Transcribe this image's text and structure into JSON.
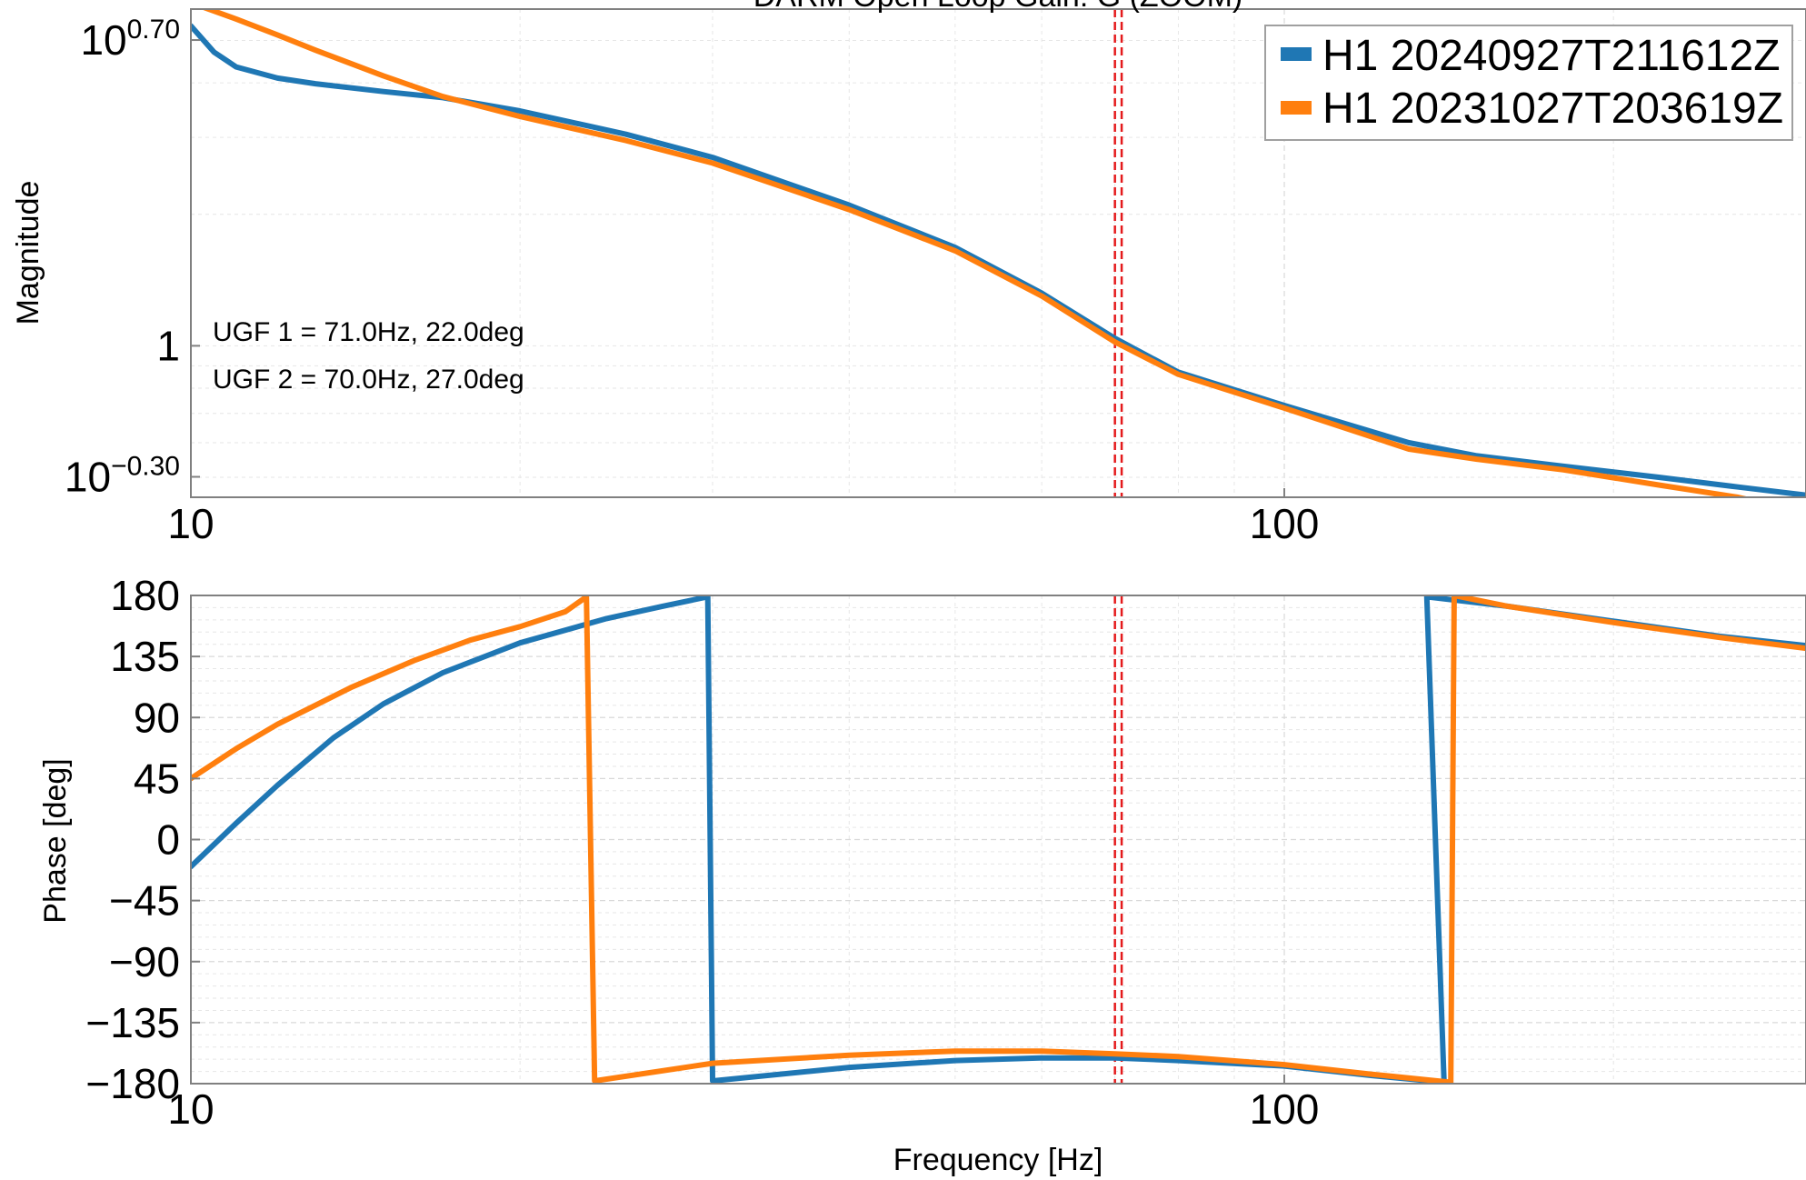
{
  "chart_data": [
    {
      "type": "line",
      "panel": "magnitude",
      "title": "DARM Open Loop Gain: G (ZOOM)",
      "xlabel": "",
      "ylabel": "Magnitude",
      "x_scale": "log",
      "y_scale": "log",
      "xlim": [
        10,
        300
      ],
      "ylim": [
        0.45,
        5.9
      ],
      "x_ticks": [
        {
          "value": 10,
          "label": "10"
        },
        {
          "value": 100,
          "label": "100"
        }
      ],
      "y_ticks": [
        {
          "value": 0.5012,
          "base": "10",
          "exp": "−0.30"
        },
        {
          "value": 1,
          "label": "1"
        },
        {
          "value": 5.012,
          "base": "10",
          "exp": "0.70"
        }
      ],
      "grid": true,
      "legend_position": "top-right",
      "vlines": [
        70.0,
        71.0
      ],
      "annotations": [
        "UGF 1 = 71.0Hz, 22.0deg",
        "UGF 2 = 70.0Hz, 27.0deg"
      ],
      "series": [
        {
          "name": "H1 20240927T211612Z",
          "color": "#1f77b4",
          "points": [
            [
              10,
              5.4
            ],
            [
              10.5,
              4.7
            ],
            [
              11,
              4.35
            ],
            [
              12,
              4.1
            ],
            [
              13,
              3.98
            ],
            [
              15,
              3.82
            ],
            [
              17,
              3.7
            ],
            [
              20,
              3.45
            ],
            [
              25,
              3.05
            ],
            [
              30,
              2.7
            ],
            [
              40,
              2.1
            ],
            [
              50,
              1.68
            ],
            [
              60,
              1.32
            ],
            [
              70,
              1.04
            ],
            [
              80,
              0.87
            ],
            [
              100,
              0.73
            ],
            [
              130,
              0.6
            ],
            [
              150,
              0.56
            ],
            [
              180,
              0.53
            ],
            [
              220,
              0.5
            ],
            [
              260,
              0.475
            ],
            [
              300,
              0.455
            ]
          ]
        },
        {
          "name": "H1 20231027T203619Z",
          "color": "#ff7f0e",
          "points": [
            [
              10,
              6.1
            ],
            [
              11,
              5.6
            ],
            [
              12,
              5.15
            ],
            [
              13,
              4.75
            ],
            [
              15,
              4.15
            ],
            [
              17,
              3.72
            ],
            [
              20,
              3.35
            ],
            [
              25,
              2.95
            ],
            [
              30,
              2.62
            ],
            [
              40,
              2.05
            ],
            [
              50,
              1.65
            ],
            [
              60,
              1.3
            ],
            [
              70,
              1.02
            ],
            [
              80,
              0.86
            ],
            [
              100,
              0.72
            ],
            [
              130,
              0.58
            ],
            [
              150,
              0.55
            ],
            [
              180,
              0.52
            ],
            [
              220,
              0.48
            ],
            [
              260,
              0.45
            ],
            [
              300,
              0.415
            ]
          ]
        }
      ]
    },
    {
      "type": "line",
      "panel": "phase",
      "title": "",
      "xlabel": "Frequency [Hz]",
      "ylabel": "Phase [deg]",
      "x_scale": "log",
      "y_scale": "linear",
      "xlim": [
        10,
        300
      ],
      "ylim": [
        -180,
        180
      ],
      "x_ticks": [
        {
          "value": 10,
          "label": "10"
        },
        {
          "value": 100,
          "label": "100"
        }
      ],
      "y_ticks": [
        {
          "value": 180,
          "label": "180"
        },
        {
          "value": 135,
          "label": "135"
        },
        {
          "value": 90,
          "label": "90"
        },
        {
          "value": 45,
          "label": "45"
        },
        {
          "value": 0,
          "label": "0"
        },
        {
          "value": -45,
          "label": "−45"
        },
        {
          "value": -90,
          "label": "−90"
        },
        {
          "value": -135,
          "label": "−135"
        },
        {
          "value": -180,
          "label": "−180"
        }
      ],
      "grid": true,
      "vlines": [
        70.0,
        71.0
      ],
      "series": [
        {
          "name": "H1 20240927T211612Z",
          "color": "#1f77b4",
          "segments": [
            [
              [
                10,
                -20
              ],
              [
                11,
                12
              ],
              [
                12,
                40
              ],
              [
                13.5,
                75
              ],
              [
                15,
                100
              ],
              [
                17,
                123
              ],
              [
                20,
                145
              ],
              [
                24,
                163
              ],
              [
                27,
                172
              ],
              [
                29.7,
                179
              ]
            ],
            [
              [
                30,
                -178
              ],
              [
                40,
                -168
              ],
              [
                50,
                -163
              ],
              [
                60,
                -161
              ],
              [
                70,
                -161
              ],
              [
                80,
                -163
              ],
              [
                100,
                -167
              ],
              [
                120,
                -174
              ],
              [
                140,
                -179
              ]
            ],
            [
              [
                135,
                179
              ],
              [
                160,
                172
              ],
              [
                200,
                161
              ],
              [
                250,
                150
              ],
              [
                300,
                143
              ]
            ]
          ]
        },
        {
          "name": "H1 20231027T203619Z",
          "color": "#ff7f0e",
          "segments": [
            [
              [
                10,
                45
              ],
              [
                11,
                67
              ],
              [
                12,
                85
              ],
              [
                14,
                112
              ],
              [
                16,
                132
              ],
              [
                18,
                147
              ],
              [
                20,
                157
              ],
              [
                22,
                168
              ],
              [
                23,
                179
              ]
            ],
            [
              [
                23.4,
                -178
              ],
              [
                30,
                -165
              ],
              [
                40,
                -159
              ],
              [
                50,
                -156
              ],
              [
                60,
                -156
              ],
              [
                70,
                -158
              ],
              [
                80,
                -160
              ],
              [
                100,
                -166
              ],
              [
                120,
                -173
              ],
              [
                142,
                -179
              ]
            ],
            [
              [
                143,
                180
              ],
              [
                160,
                172
              ],
              [
                200,
                160
              ],
              [
                250,
                149
              ],
              [
                300,
                141
              ]
            ]
          ]
        }
      ]
    }
  ]
}
